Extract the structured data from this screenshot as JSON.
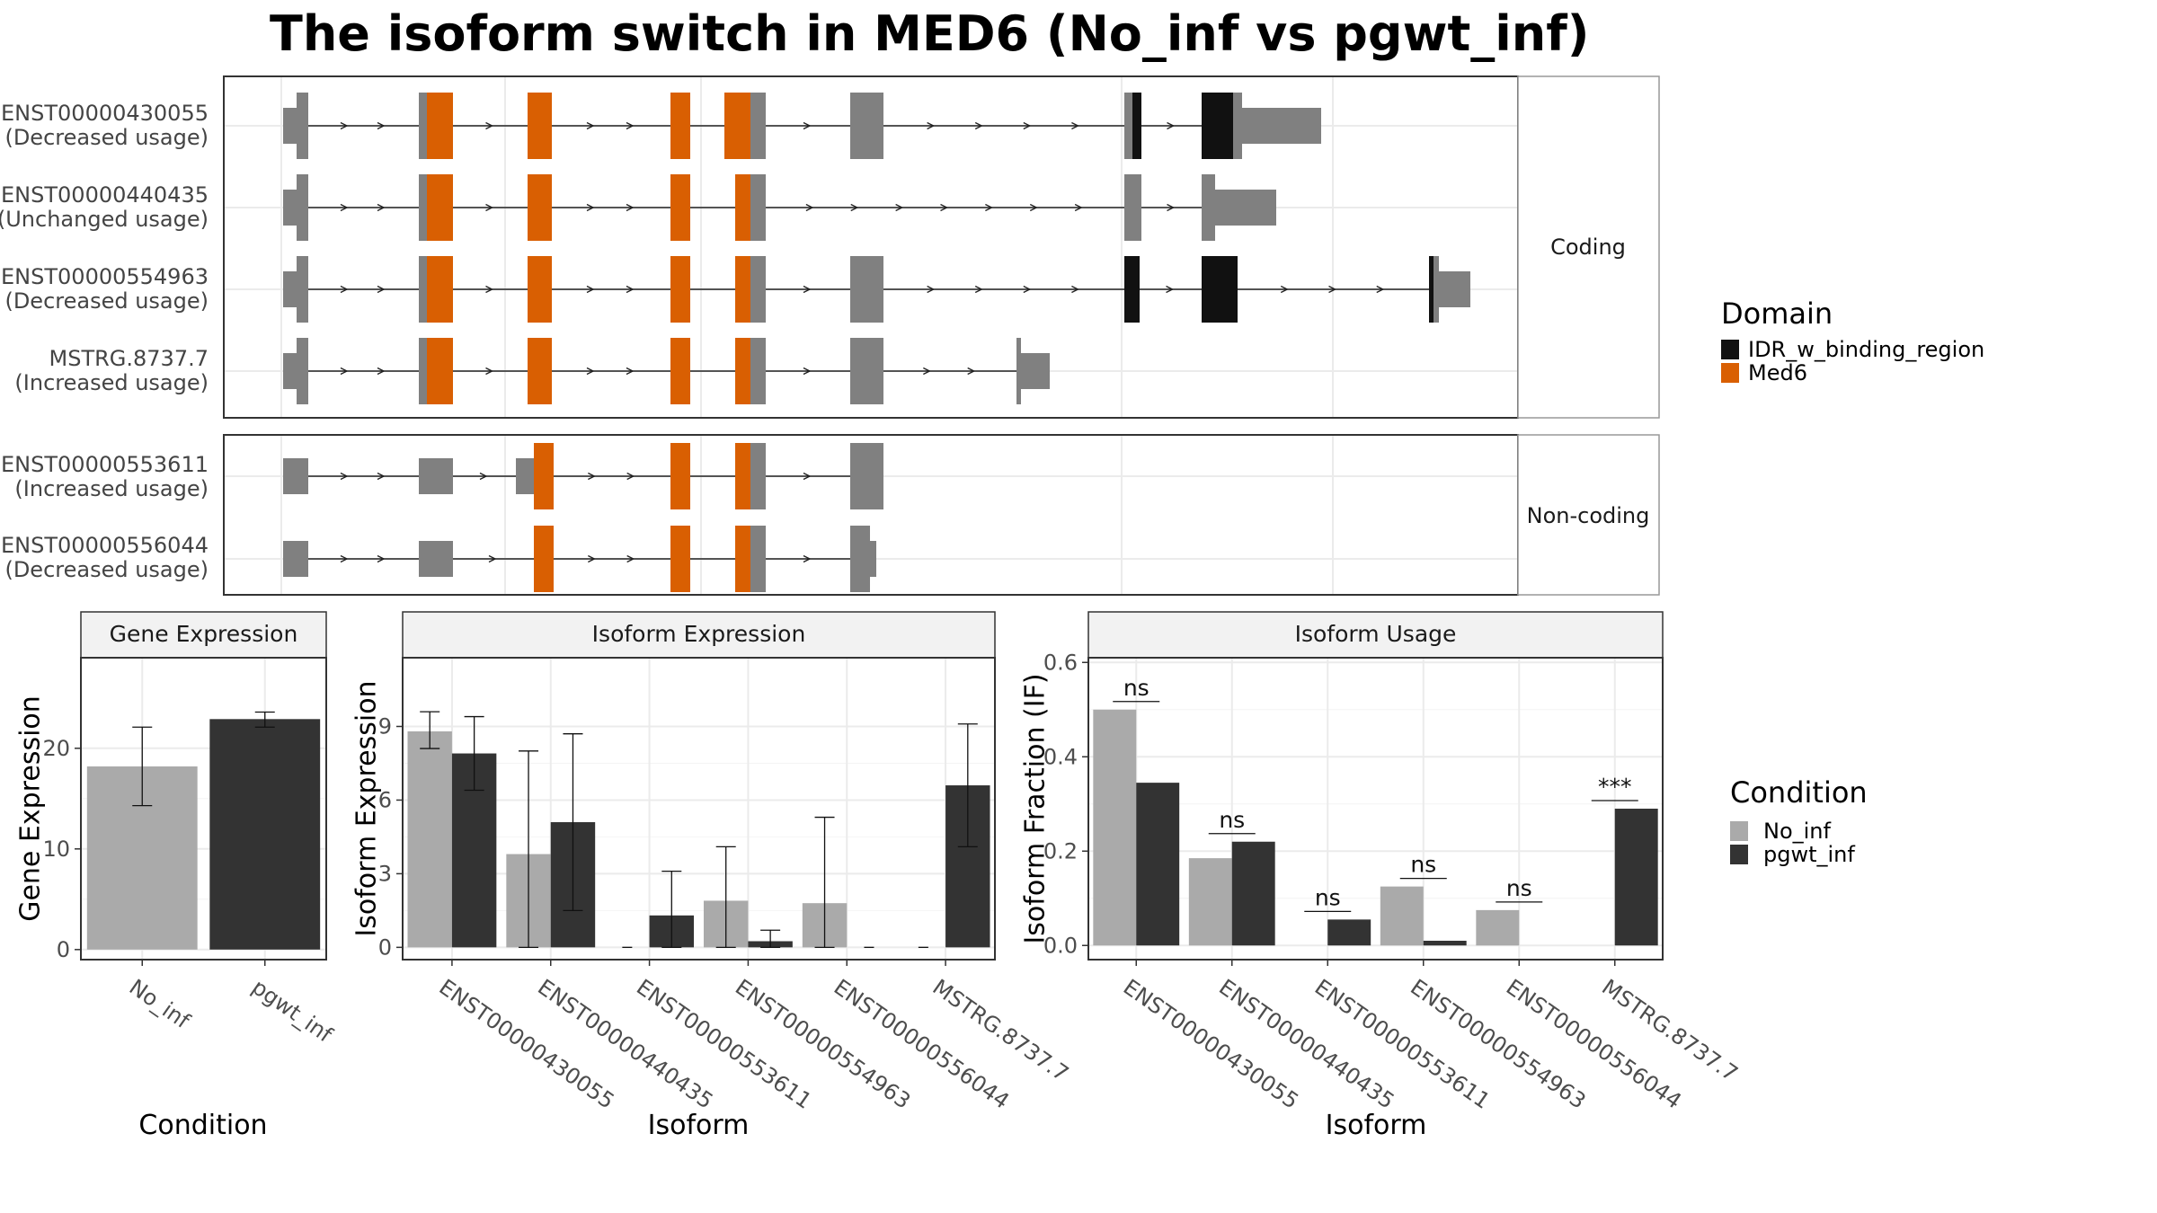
{
  "title": "The isoform switch in MED6 (No_inf vs pgwt_inf)",
  "colors": {
    "med6": "#D95F02",
    "idr": "#111111",
    "utr": "#808080",
    "no_inf": "#AAAAAA",
    "pgwt_inf": "#333333",
    "panel_border": "#333333",
    "strip_border": "#999999",
    "strip_fill": "#F2F2F2",
    "grid": "#EBEBEB"
  },
  "structure": {
    "groups": [
      {
        "label": "Coding",
        "isoforms": [
          {
            "id": "ENST00000430055",
            "note": "(Decreased usage)"
          },
          {
            "id": "ENST00000440435",
            "note": "(Unchanged usage)"
          },
          {
            "id": "ENST00000554963",
            "note": "(Decreased usage)"
          },
          {
            "id": "MSTRG.8737.7",
            "note": "(Increased usage)"
          }
        ]
      },
      {
        "label": "Non-coding",
        "isoforms": [
          {
            "id": "ENST00000553611",
            "note": "(Increased usage)"
          },
          {
            "id": "ENST00000556044",
            "note": "(Decreased usage)"
          }
        ]
      }
    ]
  },
  "legends": {
    "domain": {
      "title": "Domain",
      "items": [
        {
          "label": "IDR_w_binding_region",
          "color_key": "idr"
        },
        {
          "label": "Med6",
          "color_key": "med6"
        }
      ]
    },
    "condition": {
      "title": "Condition",
      "items": [
        {
          "label": "No_inf",
          "color_key": "no_inf"
        },
        {
          "label": "pgwt_inf",
          "color_key": "pgwt_inf"
        }
      ]
    }
  },
  "chart_data": [
    {
      "type": "bar",
      "title": "Gene Expression",
      "xlabel": "Condition",
      "ylabel": "Gene Expression",
      "categories": [
        "No_inf",
        "pgwt_inf"
      ],
      "values": [
        18.2,
        22.9
      ],
      "error_low": [
        14.3,
        22.1
      ],
      "error_high": [
        22.1,
        23.6
      ],
      "ylim": [
        -1,
        29
      ],
      "yticks": [
        0,
        10,
        20
      ]
    },
    {
      "type": "bar",
      "title": "Isoform Expression",
      "xlabel": "Isoform",
      "ylabel": "Isoform Expression",
      "categories": [
        "ENST00000430055",
        "ENST00000440435",
        "ENST00000553611",
        "ENST00000554963",
        "ENST00000556044",
        "MSTRG.8737.7"
      ],
      "series": [
        {
          "name": "No_inf",
          "values": [
            8.8,
            3.8,
            0,
            1.9,
            1.8,
            0
          ],
          "error_low": [
            8.1,
            0,
            0,
            0,
            0,
            0
          ],
          "error_high": [
            9.6,
            8.0,
            0,
            4.1,
            5.3,
            0
          ]
        },
        {
          "name": "pgwt_inf",
          "values": [
            7.9,
            5.1,
            1.3,
            0.25,
            0,
            6.6
          ],
          "error_low": [
            6.4,
            1.5,
            0,
            0,
            0,
            4.1
          ],
          "error_high": [
            9.4,
            8.7,
            3.1,
            0.7,
            0,
            9.1
          ]
        }
      ],
      "ylim": [
        -0.5,
        11.8
      ],
      "yticks": [
        0,
        3,
        6,
        9
      ]
    },
    {
      "type": "bar",
      "title": "Isoform Usage",
      "xlabel": "Isoform",
      "ylabel": "Isoform Fraction (IF)",
      "categories": [
        "ENST00000430055",
        "ENST00000440435",
        "ENST00000553611",
        "ENST00000554963",
        "ENST00000556044",
        "MSTRG.8737.7"
      ],
      "series": [
        {
          "name": "No_inf",
          "values": [
            0.5,
            0.185,
            0,
            0.125,
            0.075,
            0
          ]
        },
        {
          "name": "pgwt_inf",
          "values": [
            0.345,
            0.22,
            0.055,
            0.01,
            0,
            0.29
          ]
        }
      ],
      "significance": [
        "ns",
        "ns",
        "ns",
        "ns",
        "ns",
        "***"
      ],
      "ylim": [
        -0.03,
        0.61
      ],
      "yticks": [
        0.0,
        0.2,
        0.4,
        0.6
      ],
      "ytick_labels": [
        "0.0",
        "0.2",
        "0.4",
        "0.6"
      ]
    }
  ]
}
